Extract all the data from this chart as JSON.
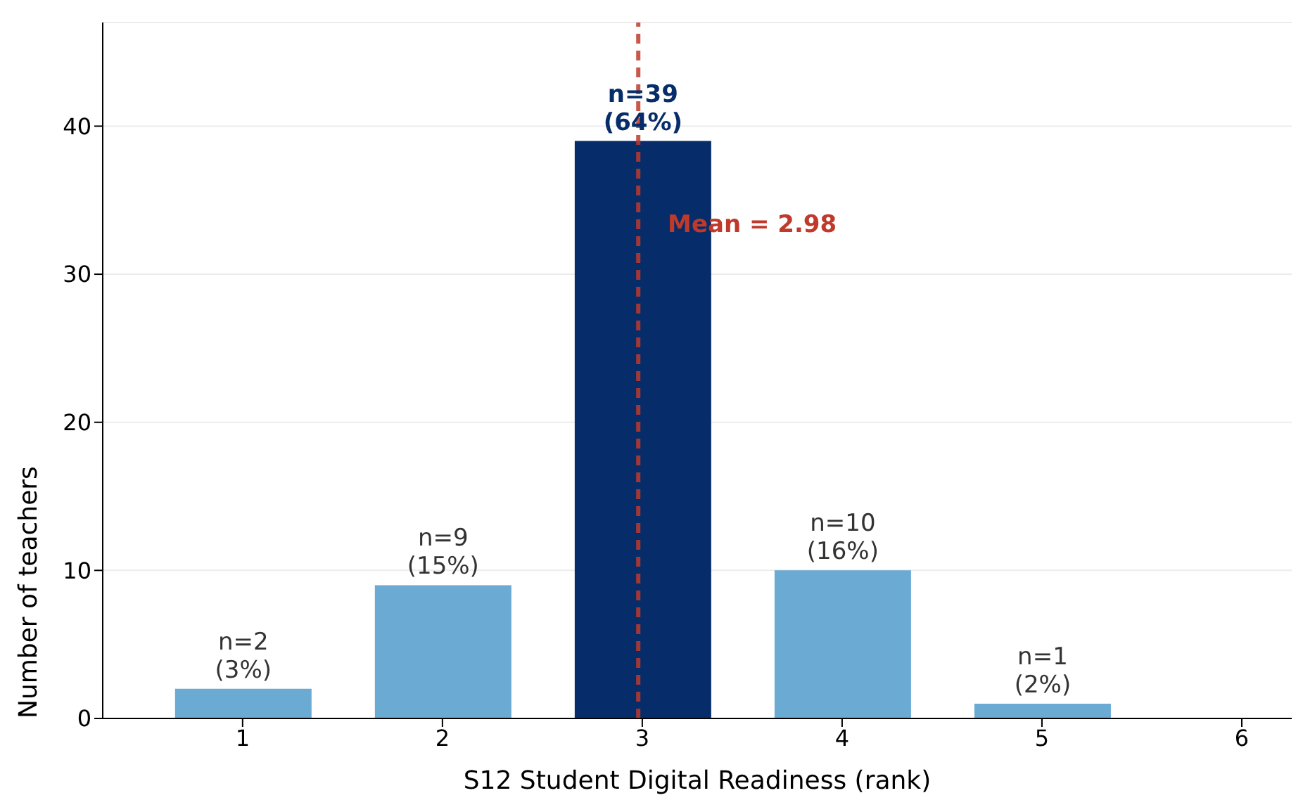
{
  "chart_data": {
    "type": "bar",
    "xlabel": "S12 Student Digital Readiness (rank)",
    "ylabel": "Number of teachers",
    "x": [
      1,
      2,
      3,
      4,
      5
    ],
    "values": [
      2,
      9,
      39,
      10,
      1
    ],
    "colors": [
      "#6aaad3",
      "#6aaad3",
      "#062d6a",
      "#6aaad3",
      "#6aaad3"
    ],
    "value_labels": [
      "n=2\n(3%)",
      "n=9\n(15%)",
      "n=39\n(64%)",
      "n=10\n(16%)",
      "n=1\n(2%)"
    ],
    "xlim": [
      0.3,
      6.25
    ],
    "xticks": [
      1,
      2,
      3,
      4,
      5,
      6
    ],
    "ylim": [
      0,
      47
    ],
    "yticks": [
      0,
      10,
      20,
      30,
      40
    ],
    "grid": "y",
    "ref_lines": [
      {
        "axis": "x",
        "value": 2.98,
        "label": "Mean = 2.98",
        "color": "#c0392b",
        "line_style": "dashed"
      }
    ]
  }
}
